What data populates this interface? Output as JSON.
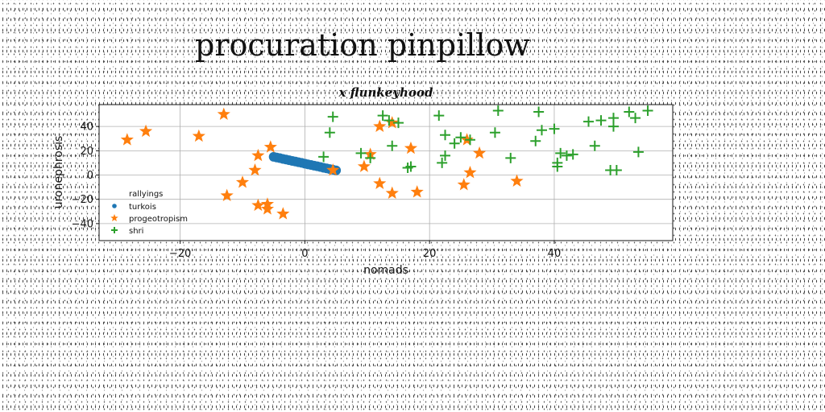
{
  "page_title": "procuration pinpillow",
  "chart_data": {
    "type": "scatter",
    "title": "x flunkeyhood",
    "xlabel": "nomads",
    "ylabel": "uronephrosis",
    "xlim": [
      -33,
      59
    ],
    "ylim": [
      -54,
      58
    ],
    "xticks": [
      -20,
      0,
      20,
      40
    ],
    "yticks": [
      -40,
      -20,
      0,
      20,
      40
    ],
    "grid": true,
    "legend": {
      "title": "rallyings",
      "placement": "center-left"
    },
    "series": [
      {
        "name": "turkois",
        "marker": "circle",
        "color": "#1f77b4",
        "points": [
          [
            -5.0,
            15.0
          ],
          [
            -4.5,
            14.4
          ],
          [
            -4.0,
            13.9
          ],
          [
            -3.5,
            13.3
          ],
          [
            -3.0,
            12.8
          ],
          [
            -2.5,
            12.2
          ],
          [
            -2.0,
            11.6
          ],
          [
            -1.5,
            11.1
          ],
          [
            -1.0,
            10.5
          ],
          [
            -0.5,
            10.0
          ],
          [
            0.0,
            9.4
          ],
          [
            0.5,
            8.8
          ],
          [
            1.0,
            8.3
          ],
          [
            1.5,
            7.7
          ],
          [
            2.0,
            7.2
          ],
          [
            2.5,
            6.6
          ],
          [
            3.0,
            6.0
          ],
          [
            3.5,
            5.5
          ],
          [
            4.0,
            4.9
          ],
          [
            4.5,
            4.4
          ],
          [
            5.0,
            3.8
          ]
        ]
      },
      {
        "name": "progeotropism",
        "marker": "star",
        "color": "#ff7f0e",
        "points": [
          [
            -28.5,
            29
          ],
          [
            -25.5,
            36
          ],
          [
            -17,
            32
          ],
          [
            -13,
            50
          ],
          [
            -12.5,
            -17
          ],
          [
            -10,
            -6
          ],
          [
            -8,
            4
          ],
          [
            -7.5,
            16
          ],
          [
            -7.5,
            -25
          ],
          [
            -6,
            -24
          ],
          [
            -6,
            -28
          ],
          [
            -5.5,
            23
          ],
          [
            -3.5,
            -32
          ],
          [
            4.5,
            4
          ],
          [
            9.5,
            7
          ],
          [
            10.5,
            17
          ],
          [
            12,
            40
          ],
          [
            12,
            -7
          ],
          [
            14,
            43
          ],
          [
            14,
            -15
          ],
          [
            17,
            22
          ],
          [
            18,
            -14
          ],
          [
            25.5,
            -8
          ],
          [
            26,
            29
          ],
          [
            26.5,
            2
          ],
          [
            28,
            18
          ],
          [
            34,
            -5
          ]
        ]
      },
      {
        "name": "shri",
        "marker": "plus",
        "color": "#2ca02c",
        "points": [
          [
            3,
            15
          ],
          [
            4,
            35
          ],
          [
            4.5,
            48
          ],
          [
            9,
            18
          ],
          [
            10.5,
            14
          ],
          [
            12.5,
            49
          ],
          [
            13.5,
            45
          ],
          [
            14,
            24
          ],
          [
            15,
            43
          ],
          [
            16.5,
            6
          ],
          [
            17,
            7
          ],
          [
            21.5,
            49
          ],
          [
            22,
            10
          ],
          [
            22.5,
            16
          ],
          [
            22.5,
            33
          ],
          [
            24,
            26
          ],
          [
            25,
            31
          ],
          [
            26.5,
            29
          ],
          [
            30.5,
            35
          ],
          [
            31,
            53
          ],
          [
            33,
            14
          ],
          [
            37,
            28
          ],
          [
            37.5,
            52
          ],
          [
            38,
            37
          ],
          [
            40,
            38
          ],
          [
            40.5,
            10
          ],
          [
            40.5,
            7
          ],
          [
            41,
            18
          ],
          [
            42,
            16
          ],
          [
            43,
            17
          ],
          [
            45.5,
            44
          ],
          [
            46.5,
            24
          ],
          [
            47.5,
            45
          ],
          [
            49,
            4
          ],
          [
            49.5,
            40
          ],
          [
            49.5,
            47
          ],
          [
            50,
            4
          ],
          [
            52,
            52
          ],
          [
            53,
            47
          ],
          [
            53.5,
            19
          ],
          [
            55,
            53
          ]
        ]
      }
    ]
  }
}
